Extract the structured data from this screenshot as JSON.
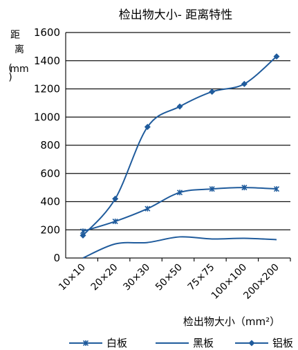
{
  "chart_data": {
    "type": "line",
    "title": "检出物大小- 距离特性",
    "ylabel": [
      "距",
      "离",
      "(",
      "mm",
      ")"
    ],
    "xlabel": "检出物大小（mm²）",
    "categories": [
      "10×10",
      "20×20",
      "30×30",
      "50×50",
      "75×75",
      "100×100",
      "200×200"
    ],
    "ylim": [
      0,
      1600
    ],
    "yticks": [
      "0",
      "200",
      "400",
      "600",
      "800",
      "1000",
      "1200",
      "1400",
      "1600"
    ],
    "grid": "horizontal",
    "legend_position": "bottom",
    "series": [
      {
        "name": "白板",
        "marker": "asterisk",
        "color": "#1f5b9c",
        "values": [
          190,
          260,
          350,
          465,
          490,
          500,
          490
        ]
      },
      {
        "name": "黑板",
        "marker": "none",
        "color": "#1f5b9c",
        "values": [
          0,
          100,
          110,
          150,
          135,
          140,
          130
        ]
      },
      {
        "name": "铝板",
        "marker": "diamond",
        "color": "#1f5b9c",
        "values": [
          160,
          420,
          930,
          1075,
          1180,
          1235,
          1430
        ]
      }
    ]
  }
}
